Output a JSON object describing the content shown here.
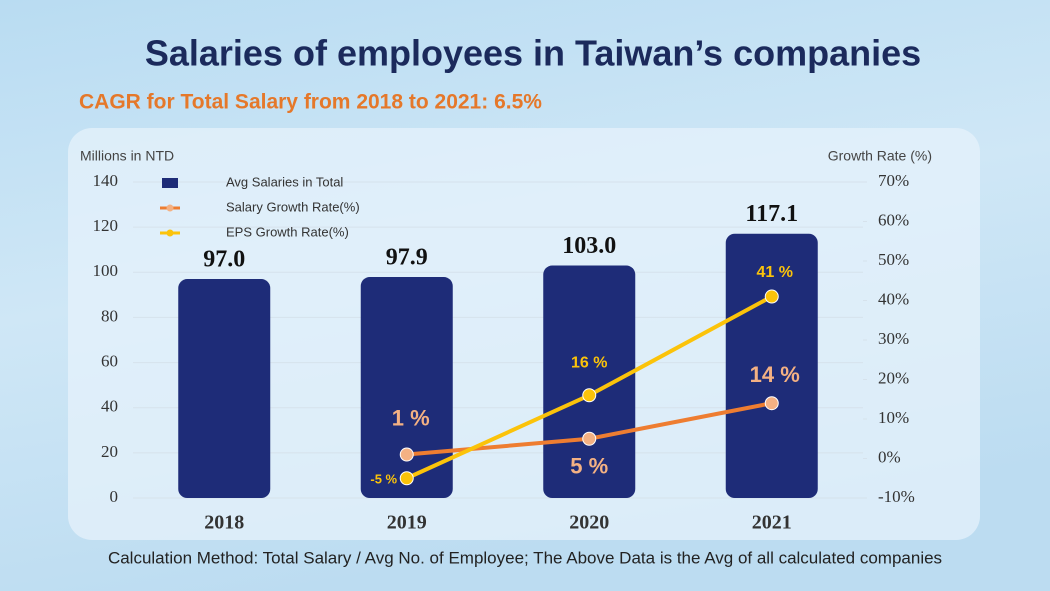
{
  "chart_data": {
    "type": "bar",
    "title": "Salaries of employees in Taiwan’s companies",
    "subtitle": "CAGR for Total Salary from 2018 to 2021: 6.5%",
    "y_label": "Millions in NTD",
    "y2_label": "Growth Rate (%)",
    "footnote": "Calculation Method: Total Salary / Avg No. of Employee; The Above Data is the Avg of all calculated companies",
    "categories": [
      "2018",
      "2019",
      "2020",
      "2021"
    ],
    "series": [
      {
        "name": "Avg Salaries in Total",
        "type": "bar",
        "axis": "y",
        "color": "#1e2c78",
        "values": [
          97.0,
          97.9,
          103.0,
          117.1
        ],
        "value_labels": [
          "97.0",
          "97.9",
          "103.0",
          "117.1"
        ]
      },
      {
        "name": "Salary Growth Rate(%)",
        "type": "line",
        "axis": "y2",
        "color": "#ee7d31",
        "values": [
          null,
          1,
          5,
          14
        ],
        "value_labels": [
          null,
          "1 %",
          "5 %",
          "14 %"
        ]
      },
      {
        "name": "EPS Growth Rate(%)",
        "type": "line",
        "axis": "y2",
        "color": "#fbc30a",
        "values": [
          null,
          -5,
          16,
          41
        ],
        "value_labels": [
          null,
          "-5 %",
          "16 %",
          "41 %"
        ]
      }
    ],
    "ylim": [
      0,
      140
    ],
    "yticks": [
      0,
      20,
      40,
      60,
      80,
      100,
      120,
      140
    ],
    "y2lim": [
      -10,
      70
    ],
    "y2ticks": [
      {
        "value": -10,
        "label": "-10%"
      },
      {
        "value": 0,
        "label": "0%"
      },
      {
        "value": 10,
        "label": "10%"
      },
      {
        "value": 20,
        "label": "20%"
      },
      {
        "value": 30,
        "label": "30%"
      },
      {
        "value": 40,
        "label": "40%"
      },
      {
        "value": 50,
        "label": "50%"
      },
      {
        "value": 60,
        "label": "60%"
      },
      {
        "value": 70,
        "label": "70%"
      }
    ],
    "grid": true,
    "legend": "upper left"
  }
}
